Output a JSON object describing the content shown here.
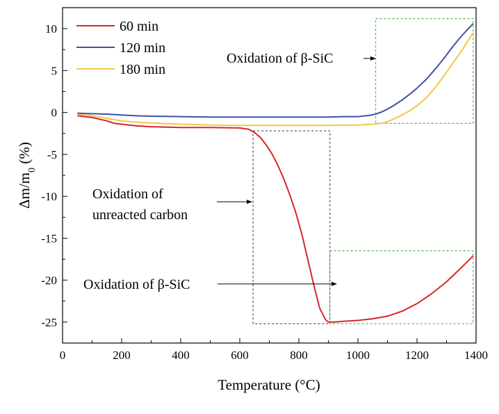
{
  "chart_data": {
    "type": "line",
    "title": "",
    "xlabel": "Temperature (°C)",
    "ylabel": "Δm/m",
    "ylabel_subscript": "0",
    "ylabel_suffix": " (%)",
    "xlim": [
      0,
      1400
    ],
    "ylim": [
      -27.5,
      12.5
    ],
    "xticks": [
      0,
      200,
      400,
      600,
      800,
      1000,
      1200,
      1400
    ],
    "yticks": [
      10,
      5,
      0,
      -5,
      -10,
      -15,
      -20,
      -25
    ],
    "xtick_labels": [
      "0",
      "200",
      "400",
      "600",
      "800",
      "1000",
      "1200",
      "1400"
    ],
    "ytick_labels": [
      "10",
      "5",
      "0",
      "-5",
      "-10",
      "-15",
      "-20",
      "-25"
    ],
    "grid": false,
    "legend_position": "top-left",
    "series": [
      {
        "name": "60 min",
        "color": "#d62728",
        "x": [
          50,
          100,
          150,
          175,
          200,
          250,
          300,
          400,
          500,
          600,
          630,
          650,
          670,
          690,
          710,
          730,
          750,
          770,
          790,
          810,
          830,
          850,
          870,
          890,
          900,
          920,
          950,
          1000,
          1050,
          1100,
          1150,
          1200,
          1250,
          1300,
          1350,
          1390
        ],
        "values": [
          -0.4,
          -0.6,
          -1.0,
          -1.3,
          -1.4,
          -1.6,
          -1.7,
          -1.8,
          -1.8,
          -1.85,
          -2.0,
          -2.4,
          -3.0,
          -3.9,
          -5.0,
          -6.4,
          -8.0,
          -9.9,
          -12.0,
          -14.5,
          -17.5,
          -20.5,
          -23.3,
          -24.7,
          -25.0,
          -25.0,
          -24.9,
          -24.8,
          -24.6,
          -24.3,
          -23.7,
          -22.8,
          -21.6,
          -20.2,
          -18.5,
          -17.1
        ]
      },
      {
        "name": "120 min",
        "color": "#3f51a5",
        "x": [
          50,
          100,
          150,
          200,
          250,
          300,
          400,
          500,
          600,
          700,
          800,
          900,
          950,
          1000,
          1040,
          1060,
          1080,
          1100,
          1120,
          1150,
          1180,
          1200,
          1230,
          1260,
          1290,
          1320,
          1350,
          1390
        ],
        "values": [
          -0.1,
          -0.15,
          -0.2,
          -0.3,
          -0.4,
          -0.45,
          -0.5,
          -0.55,
          -0.55,
          -0.55,
          -0.55,
          -0.55,
          -0.5,
          -0.5,
          -0.35,
          -0.2,
          0.05,
          0.4,
          0.8,
          1.5,
          2.3,
          2.9,
          3.9,
          5.1,
          6.4,
          7.8,
          9.1,
          10.6
        ]
      },
      {
        "name": "180 min",
        "color": "#f2c744",
        "x": [
          50,
          100,
          150,
          200,
          250,
          300,
          400,
          500,
          600,
          700,
          800,
          900,
          950,
          1000,
          1050,
          1080,
          1100,
          1120,
          1150,
          1180,
          1200,
          1230,
          1260,
          1290,
          1320,
          1350,
          1390
        ],
        "values": [
          -0.25,
          -0.4,
          -0.7,
          -1.0,
          -1.15,
          -1.25,
          -1.4,
          -1.5,
          -1.55,
          -1.55,
          -1.55,
          -1.55,
          -1.5,
          -1.5,
          -1.4,
          -1.3,
          -1.1,
          -0.8,
          -0.3,
          0.3,
          0.8,
          1.7,
          2.9,
          4.3,
          5.8,
          7.3,
          9.5
        ]
      }
    ],
    "annotations": [
      {
        "id": "box-sic-upper",
        "kind": "box",
        "style": "green-dotted",
        "x": [
          1060,
          1390
        ],
        "y": [
          -1.3,
          11.2
        ]
      },
      {
        "id": "box-carbon",
        "kind": "box",
        "style": "dark-dotted",
        "x": [
          645,
          905
        ],
        "y": [
          -2.2,
          -25.2
        ]
      },
      {
        "id": "box-sic-lower",
        "kind": "box",
        "style": "green-dotted",
        "x": [
          905,
          1390
        ],
        "y": [
          -16.5,
          -25.2
        ]
      },
      {
        "id": "label-sic-upper",
        "kind": "label",
        "lines": [
          "Oxidation of β-SiC"
        ],
        "arrow_to": [
          1060,
          6.8
        ]
      },
      {
        "id": "label-carbon",
        "kind": "label",
        "lines": [
          "Oxidation of",
          "unreacted carbon"
        ],
        "arrow_to": [
          645,
          -10.7
        ]
      },
      {
        "id": "label-sic-lower",
        "kind": "label",
        "lines": [
          "Oxidation of β-SiC"
        ],
        "arrow_to": [
          920,
          -20.4
        ]
      }
    ]
  }
}
